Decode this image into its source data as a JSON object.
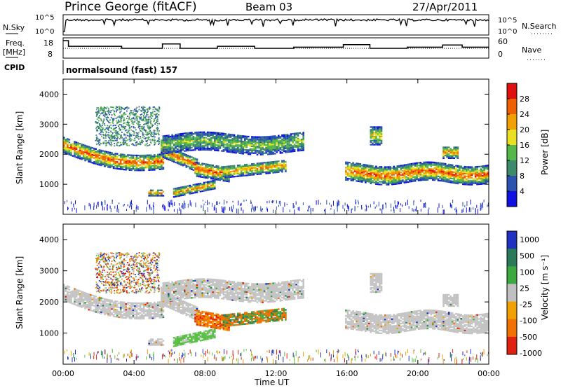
{
  "header": {
    "station": "Prince George (fitACF)",
    "beam": "Beam 03",
    "date": "27/Apr/2011"
  },
  "side_labels": {
    "nsky": "N.Sky",
    "freq": "Freq.",
    "freq_unit": "[MHz]",
    "cpid": "CPID",
    "nsearch": "N.Search",
    "nave": "Nave"
  },
  "cpid_text": "normalsound (fast) 157",
  "chart_data": [
    {
      "type": "line",
      "panel": "noise",
      "ticks_left": [
        "10^5",
        "10^0"
      ],
      "ticks_right": [
        "10^5",
        "10^0"
      ],
      "note": "N.Sky noise trace near top of 10^0..10^5 range"
    },
    {
      "type": "line",
      "panel": "frequency",
      "ticks_left": [
        "18",
        "8"
      ],
      "ticks_right": [
        "60",
        "0"
      ],
      "freq_steps": [
        {
          "t0": 0.0,
          "t1": 0.3,
          "mhz": 16.8
        },
        {
          "t0": 0.3,
          "t1": 3.3,
          "mhz": 13.7
        },
        {
          "t0": 3.3,
          "t1": 5.6,
          "mhz": 12.6
        },
        {
          "t0": 5.6,
          "t1": 6.6,
          "mhz": 15.0
        },
        {
          "t0": 6.6,
          "t1": 8.7,
          "mhz": 12.6
        },
        {
          "t0": 8.7,
          "t1": 10.8,
          "mhz": 13.7
        },
        {
          "t0": 10.8,
          "t1": 13.0,
          "mhz": 12.6
        },
        {
          "t0": 13.0,
          "t1": 15.8,
          "mhz": 13.2
        },
        {
          "t0": 15.8,
          "t1": 17.3,
          "mhz": 14.6
        },
        {
          "t0": 17.3,
          "t1": 19.4,
          "mhz": 12.6
        },
        {
          "t0": 19.4,
          "t1": 21.4,
          "mhz": 13.2
        },
        {
          "t0": 21.4,
          "t1": 22.5,
          "mhz": 14.4
        },
        {
          "t0": 22.5,
          "t1": 24.0,
          "mhz": 13.2
        }
      ]
    },
    {
      "type": "heatmap",
      "panel": "power",
      "ylabel": "Slant Range [km]",
      "yticks": [
        "1000",
        "2000",
        "3000",
        "4000"
      ],
      "ylim": [
        0,
        4500
      ],
      "colorbar_label": "Power [dB]",
      "colorbar_ticks": [
        "4",
        "8",
        "12",
        "16",
        "20",
        "24",
        "28"
      ],
      "colorbar_colors": [
        "#1010e0",
        "#2a52b0",
        "#3c8a6a",
        "#56b84a",
        "#e8e020",
        "#f0a000",
        "#f06000",
        "#e01010"
      ]
    },
    {
      "type": "heatmap",
      "panel": "velocity",
      "ylabel": "Slant Range [km]",
      "yticks": [
        "1000",
        "2000",
        "3000",
        "4000"
      ],
      "ylim": [
        0,
        4500
      ],
      "colorbar_label": "Velocity [m s⁻¹]",
      "colorbar_ticks": [
        "1000",
        "500",
        "100",
        "25",
        "-25",
        "-100",
        "-500",
        "-1000"
      ],
      "colorbar_colors": [
        "#2030c0",
        "#2a7a5a",
        "#3ca840",
        "#c0c0c0",
        "#f0a000",
        "#f07000",
        "#e02010"
      ],
      "xlabel": "Time UT",
      "xticks": [
        "00:00",
        "04:00",
        "08:00",
        "12:00",
        "16:00",
        "20:00",
        "00:00"
      ],
      "xlim": [
        0,
        24
      ]
    }
  ]
}
